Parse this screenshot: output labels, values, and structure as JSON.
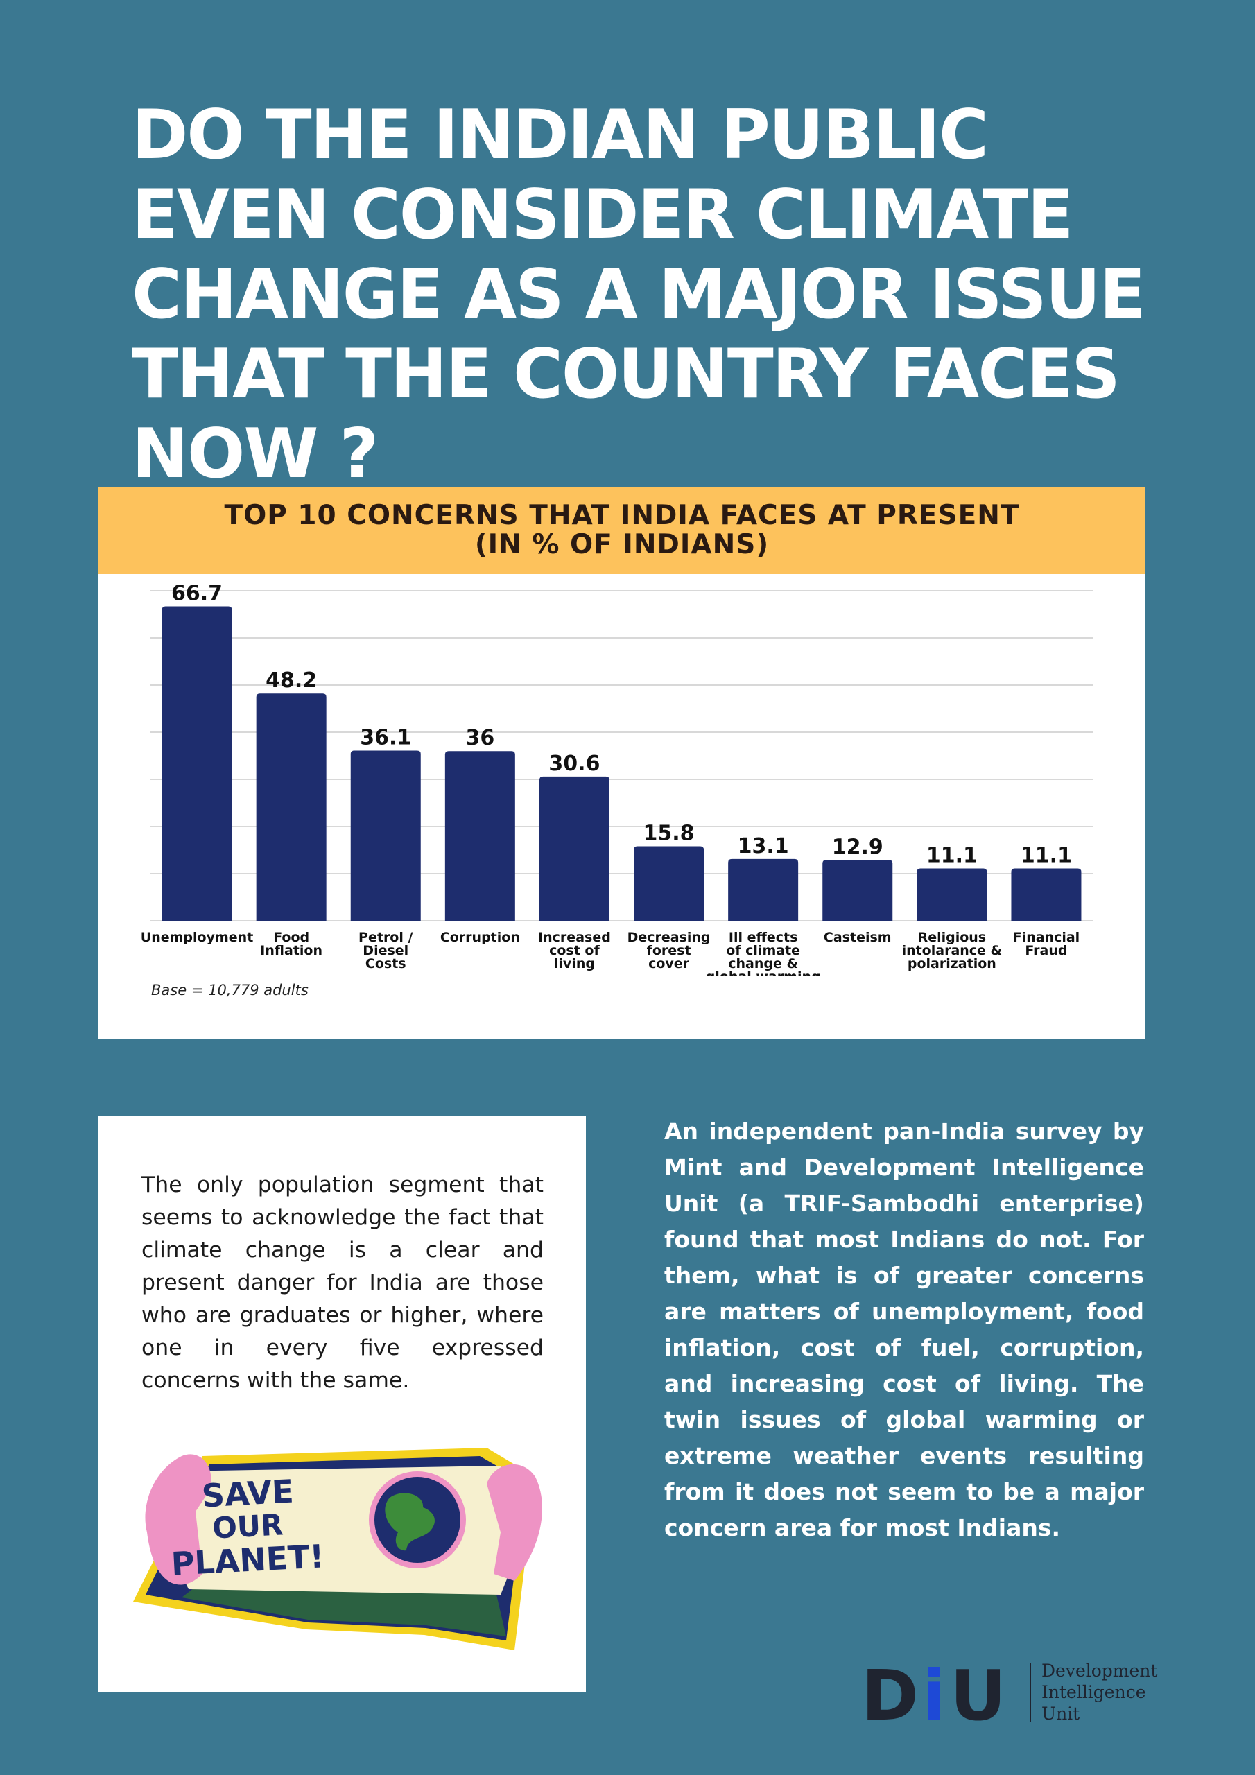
{
  "headline": "DO THE INDIAN PUBLIC EVEN CONSIDER CLIMATE CHANGE AS A MAJOR ISSUE THAT THE COUNTRY FACES NOW ?",
  "chart_header": {
    "line1": "TOP 10 CONCERNS THAT INDIA FACES AT PRESENT",
    "line2": "(IN % OF INDIANS)"
  },
  "chart_data": {
    "type": "bar",
    "title": "TOP 10 CONCERNS THAT INDIA FACES AT PRESENT (IN % OF INDIANS)",
    "categories": [
      "Unemployment",
      "Food Inflation",
      "Petrol / Diesel Costs",
      "Corruption",
      "Increased cost of living",
      "Decreasing forest cover",
      "Ill effects of climate change & global warming",
      "Casteism",
      "Religious intolarance & polarization",
      "Financial Fraud"
    ],
    "category_lines": [
      [
        "Unemployment"
      ],
      [
        "Food",
        "Inflation"
      ],
      [
        "Petrol /",
        "Diesel",
        "Costs"
      ],
      [
        "Corruption"
      ],
      [
        "Increased",
        "cost of",
        "living"
      ],
      [
        "Decreasing",
        "forest",
        "cover"
      ],
      [
        "Ill effects",
        "of climate",
        "change &",
        "global warming"
      ],
      [
        "Casteism"
      ],
      [
        "Religious",
        "intolarance &",
        "polarization"
      ],
      [
        "Financial",
        "Fraud"
      ]
    ],
    "values": [
      66.7,
      48.2,
      36.1,
      36,
      30.6,
      15.8,
      13.1,
      12.9,
      11.1,
      11.1
    ],
    "value_labels": [
      "66.7",
      "48.2",
      "36.1",
      "36",
      "30.6",
      "15.8",
      "13.1",
      "12.9",
      "11.1",
      "11.1"
    ],
    "ylim": [
      0,
      70
    ],
    "ytick_step": 10,
    "grid": true,
    "y_axis_labels_shown": false,
    "bar_color": "#1e2d6e",
    "grid_color": "#cccccc",
    "xlabel": "",
    "ylabel": ""
  },
  "base_note": "Base = 10,779 adults",
  "left_paragraph": "The only population segment that seems to acknowledge the fact that climate change is a clear and present danger for India are those who are graduates or higher, where one in every five expressed concerns with the same.",
  "sticker": {
    "line1": "SAVE",
    "line2": "OUR",
    "line3": "PLANET!"
  },
  "right_paragraph": "An independent pan-India survey by Mint and Development Intelligence Unit (a TRIF-Sambodhi enterprise) found that most Indians do not. For them, what is of greater concerns are matters of unemployment, food inflation, cost of fuel, corruption, and increasing cost of living. The twin issues of global warming or extreme weather events resulting from it does not seem to be a major concern area for most Indians.",
  "logo": {
    "letters": [
      "D",
      "i",
      "U"
    ],
    "line1": "Development",
    "line2": "Intelligence",
    "line3": "Unit"
  },
  "colors": {
    "background": "#3b7891",
    "header_band": "#fdc25c",
    "bar": "#1e2d6e",
    "logo_accent": "#1e49d6"
  }
}
